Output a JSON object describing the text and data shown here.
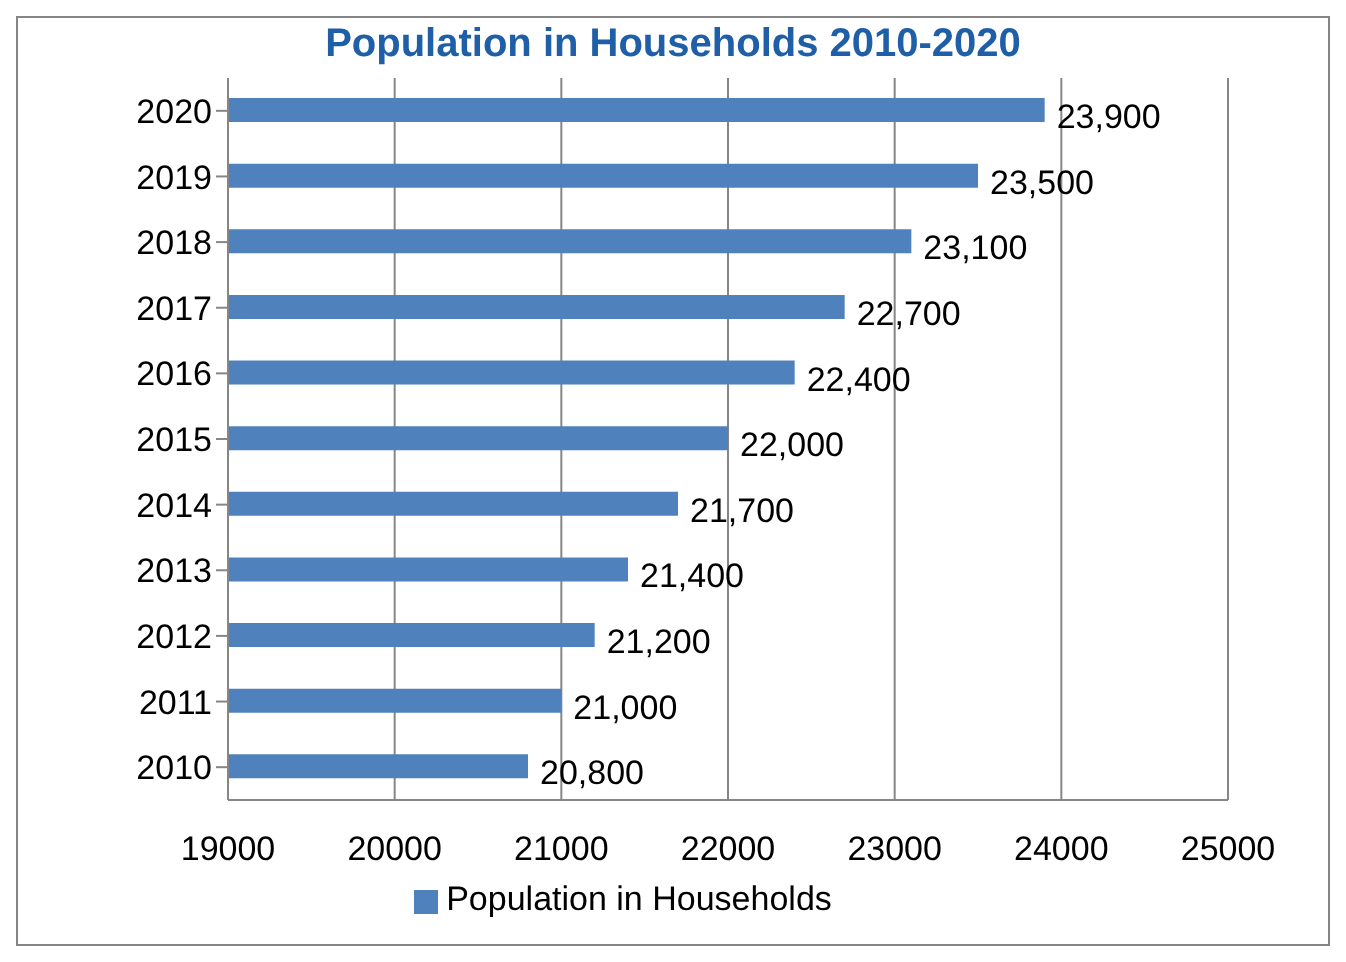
{
  "chart_data": {
    "type": "bar",
    "orientation": "horizontal",
    "title": "Population in Households 2010-2020",
    "categories": [
      "2020",
      "2019",
      "2018",
      "2017",
      "2016",
      "2015",
      "2014",
      "2013",
      "2012",
      "2011",
      "2010"
    ],
    "series": [
      {
        "name": "Population in Households",
        "color": "#4f81bd",
        "values": [
          23900,
          23500,
          23100,
          22700,
          22400,
          22000,
          21700,
          21400,
          21200,
          21000,
          20800
        ],
        "value_labels": [
          "23,900",
          "23,500",
          "23,100",
          "22,700",
          "22,400",
          "22,000",
          "21,700",
          "21,400",
          "21,200",
          "21,000",
          "20,800"
        ]
      }
    ],
    "xlim": [
      19000,
      25000
    ],
    "xticks": [
      19000,
      20000,
      21000,
      22000,
      23000,
      24000,
      25000
    ],
    "grid": "x",
    "legend": "bottom"
  }
}
